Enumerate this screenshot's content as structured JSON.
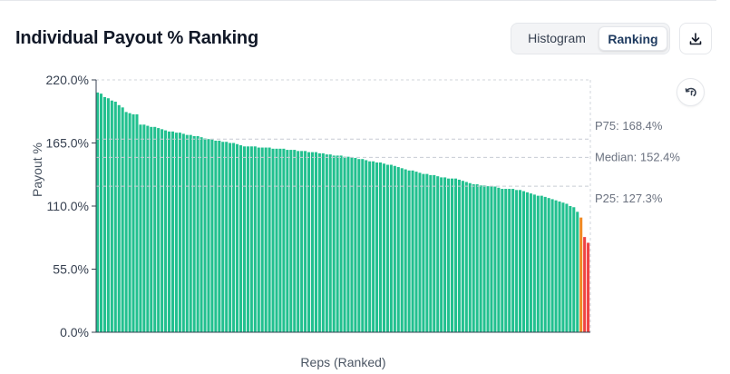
{
  "header": {
    "title": "Individual Payout % Ranking",
    "toggle": {
      "histogram_label": "Histogram",
      "ranking_label": "Ranking",
      "selected": "Ranking"
    },
    "download_icon": "download-icon"
  },
  "controls": {
    "reset_icon": "reset-zoom-icon"
  },
  "colors": {
    "above": "#22c08f",
    "warning": "#f08a24",
    "below": "#ef4444",
    "reference_line": "#cbd5e1",
    "annotation": "#6b7280"
  },
  "chart_data": {
    "type": "bar",
    "title": "Individual Payout % Ranking",
    "xlabel": "Reps (Ranked)",
    "ylabel": "Payout %",
    "ylim": [
      0,
      220
    ],
    "yticks": [
      "0.0%",
      "55.0%",
      "110.0%",
      "165.0%",
      "220.0%"
    ],
    "grid": false,
    "values": [
      209,
      208,
      205,
      204,
      202,
      201,
      198,
      196,
      192,
      191,
      190,
      190,
      181,
      181,
      180,
      179,
      179,
      178,
      177,
      176,
      175,
      175,
      174,
      174,
      173,
      172,
      172,
      171,
      171,
      170,
      169,
      168.4,
      168,
      167,
      167,
      166,
      166,
      165,
      165,
      164,
      163,
      162,
      162,
      162,
      162,
      161,
      161,
      161,
      161,
      160,
      160,
      160,
      160,
      159,
      159,
      159,
      158,
      158,
      158,
      157,
      157,
      157,
      156,
      156,
      155,
      155,
      154,
      154,
      154,
      153,
      153,
      152.4,
      152,
      151,
      151,
      150,
      149,
      149,
      148,
      148,
      147,
      146,
      146,
      145,
      144,
      143,
      142,
      141,
      141,
      140,
      139,
      138,
      138,
      137,
      137,
      136,
      135,
      135,
      134,
      134,
      134,
      133,
      132,
      131,
      130,
      129,
      129,
      128,
      128,
      127.3,
      127,
      127,
      126,
      125,
      125,
      125,
      125,
      124,
      124,
      123,
      122,
      121,
      120,
      119,
      119,
      118,
      117,
      116,
      115,
      114,
      113,
      112,
      110,
      109,
      105,
      100,
      83,
      78
    ],
    "colors": [
      "#22c08f",
      "#f08a24",
      "#ef4444"
    ],
    "reference_lines": [
      {
        "label": "P75: 168.4%",
        "value": 168.4
      },
      {
        "label": "Median: 152.4%",
        "value": 152.4
      },
      {
        "label": "P25: 127.3%",
        "value": 127.3
      }
    ]
  }
}
